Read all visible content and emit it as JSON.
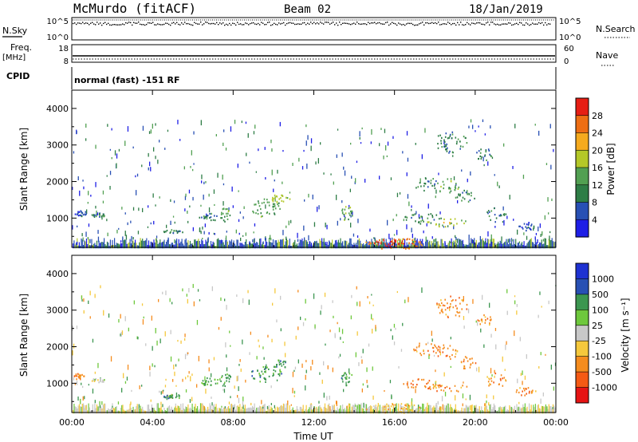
{
  "header": {
    "station": "McMurdo (fitACF)",
    "beam": "Beam 02",
    "date": "18/Jan/2019"
  },
  "top_panels": {
    "nsky_label": "N.Sky",
    "nsky_ticks": [
      "10^5",
      "10^0"
    ],
    "nsearch_label": "N.Search",
    "nsearch_ticks": [
      "10^5",
      "10^0"
    ],
    "freq_label": "Freq.",
    "freq_unit": "[MHz]",
    "freq_ticks": [
      "18",
      "8"
    ],
    "nave_label": "Nave",
    "nave_ticks": [
      "60",
      "0"
    ],
    "cpid_label": "CPID",
    "cpid_text": "normal (fast) -151 RF"
  },
  "colors": {
    "power": [
      "#1e1ee6",
      "#2850b4",
      "#2e7d46",
      "#52a052",
      "#b4c828",
      "#f5aa1e",
      "#ee6e14",
      "#e61e14"
    ],
    "velocity": [
      "#e61414",
      "#f55a14",
      "#f58c1e",
      "#f5c83c",
      "#c8c8c8",
      "#6ec83c",
      "#3c9650",
      "#2850b4",
      "#1e32d2"
    ]
  },
  "chart_data": [
    {
      "type": "heatmap",
      "name": "power",
      "ylabel": "Slant Range [km]",
      "yticks": [
        "1000",
        "2000",
        "3000",
        "4000"
      ],
      "ylim": [
        200,
        4500
      ],
      "xlim": [
        0,
        24
      ],
      "xticks": [
        "00:00",
        "04:00",
        "08:00",
        "12:00",
        "16:00",
        "20:00",
        "00:00"
      ],
      "colorbar_label": "Power [dB]",
      "colorbar_ticks": [
        "4",
        "8",
        "12",
        "16",
        "20",
        "24",
        "28"
      ],
      "blobs": [
        {
          "t": 0.4,
          "r": 1150,
          "dt": 0.3,
          "dr": 80,
          "c": 1
        },
        {
          "t": 1.3,
          "r": 1100,
          "dt": 0.35,
          "dr": 60,
          "c": 2
        },
        {
          "t": 5.0,
          "r": 650,
          "dt": 0.5,
          "dr": 50,
          "c": 2
        },
        {
          "t": 6.8,
          "r": 1050,
          "dt": 0.5,
          "dr": 120,
          "c": 2
        },
        {
          "t": 7.6,
          "r": 1100,
          "dt": 0.3,
          "dr": 200,
          "c": 3
        },
        {
          "t": 9.6,
          "r": 1300,
          "dt": 0.8,
          "dr": 250,
          "c": 3
        },
        {
          "t": 10.3,
          "r": 1550,
          "dt": 0.5,
          "dr": 120,
          "c": 4
        },
        {
          "t": 13.6,
          "r": 1150,
          "dt": 0.3,
          "dr": 200,
          "c": 3
        },
        {
          "t": 16.0,
          "r": 320,
          "dt": 1.5,
          "dr": 150,
          "c": 6
        },
        {
          "t": 15.7,
          "r": 330,
          "dt": 0.9,
          "dr": 90,
          "c": 7
        },
        {
          "t": 17.4,
          "r": 1000,
          "dt": 1.0,
          "dr": 150,
          "c": 2
        },
        {
          "t": 18.6,
          "r": 900,
          "dt": 1.0,
          "dr": 120,
          "c": 4
        },
        {
          "t": 17.5,
          "r": 1950,
          "dt": 0.6,
          "dr": 200,
          "c": 2
        },
        {
          "t": 18.6,
          "r": 1900,
          "dt": 0.6,
          "dr": 220,
          "c": 3
        },
        {
          "t": 19.5,
          "r": 1600,
          "dt": 0.5,
          "dr": 180,
          "c": 2
        },
        {
          "t": 18.8,
          "r": 3100,
          "dt": 0.8,
          "dr": 300,
          "c": 2
        },
        {
          "t": 20.4,
          "r": 2750,
          "dt": 0.4,
          "dr": 200,
          "c": 2
        },
        {
          "t": 21.0,
          "r": 1100,
          "dt": 0.5,
          "dr": 200,
          "c": 2
        },
        {
          "t": 22.5,
          "r": 800,
          "dt": 0.5,
          "dr": 120,
          "c": 1
        }
      ]
    },
    {
      "type": "heatmap",
      "name": "velocity",
      "ylabel": "Slant Range [km]",
      "yticks": [
        "1000",
        "2000",
        "3000",
        "4000"
      ],
      "ylim": [
        200,
        4500
      ],
      "xlim": [
        0,
        24
      ],
      "xticks": [
        "00:00",
        "04:00",
        "08:00",
        "12:00",
        "16:00",
        "20:00",
        "00:00"
      ],
      "xlabel": "Time UT",
      "colorbar_label": "Velocity [m s⁻¹]",
      "colorbar_ticks": [
        "1000",
        "500",
        "100",
        "25",
        "-25",
        "-100",
        "-500",
        "-1000"
      ],
      "blobs": [
        {
          "t": 0.3,
          "r": 1200,
          "dt": 0.3,
          "dr": 80,
          "c": 2
        },
        {
          "t": 1.3,
          "r": 1100,
          "dt": 0.35,
          "dr": 60,
          "c": 4
        },
        {
          "t": 5.0,
          "r": 650,
          "dt": 0.5,
          "dr": 50,
          "c": 6
        },
        {
          "t": 6.8,
          "r": 1050,
          "dt": 0.5,
          "dr": 120,
          "c": 6
        },
        {
          "t": 7.6,
          "r": 1100,
          "dt": 0.3,
          "dr": 200,
          "c": 6
        },
        {
          "t": 9.6,
          "r": 1300,
          "dt": 0.8,
          "dr": 250,
          "c": 6
        },
        {
          "t": 10.3,
          "r": 1550,
          "dt": 0.5,
          "dr": 120,
          "c": 6
        },
        {
          "t": 13.6,
          "r": 1150,
          "dt": 0.3,
          "dr": 200,
          "c": 6
        },
        {
          "t": 16.0,
          "r": 320,
          "dt": 1.5,
          "dr": 150,
          "c": 3
        },
        {
          "t": 17.4,
          "r": 1000,
          "dt": 1.0,
          "dr": 150,
          "c": 2
        },
        {
          "t": 18.6,
          "r": 900,
          "dt": 1.0,
          "dr": 120,
          "c": 2
        },
        {
          "t": 17.5,
          "r": 1950,
          "dt": 0.6,
          "dr": 200,
          "c": 2
        },
        {
          "t": 18.6,
          "r": 1900,
          "dt": 0.6,
          "dr": 220,
          "c": 2
        },
        {
          "t": 19.5,
          "r": 1600,
          "dt": 0.5,
          "dr": 180,
          "c": 2
        },
        {
          "t": 18.8,
          "r": 3100,
          "dt": 0.8,
          "dr": 300,
          "c": 2
        },
        {
          "t": 20.4,
          "r": 2750,
          "dt": 0.4,
          "dr": 200,
          "c": 2
        },
        {
          "t": 21.0,
          "r": 1100,
          "dt": 0.5,
          "dr": 200,
          "c": 2
        },
        {
          "t": 22.5,
          "r": 800,
          "dt": 0.5,
          "dr": 120,
          "c": 2
        }
      ]
    }
  ]
}
